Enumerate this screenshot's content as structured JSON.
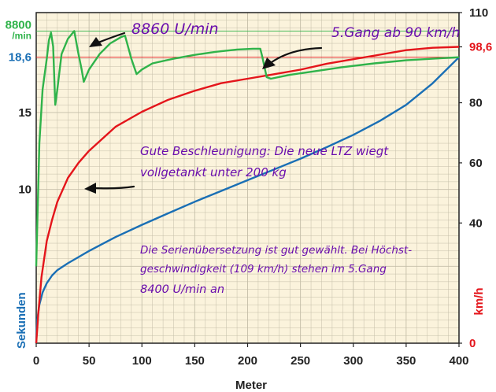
{
  "chart_data": {
    "type": "line",
    "xlabel": "Meter",
    "ylabel_left": "Sekunden",
    "ylabel_right": "km/h",
    "xlim": [
      0,
      400
    ],
    "ylim_left_seconds": [
      0,
      21.5
    ],
    "ylim_right_kmh": [
      0,
      110
    ],
    "x_ticks": [
      "0",
      "50",
      "100",
      "150",
      "200",
      "250",
      "300",
      "350",
      "400"
    ],
    "left_ticks": [
      {
        "label": "10",
        "value": 10
      },
      {
        "label": "15",
        "value": 15
      },
      {
        "label": "18,6",
        "value": 18.6
      },
      {
        "label": "8800\n/min",
        "value": 20.3
      }
    ],
    "right_ticks": [
      {
        "label": "0",
        "value": 0
      },
      {
        "label": "40",
        "value": 40
      },
      {
        "label": "60",
        "value": 60
      },
      {
        "label": "80",
        "value": 80
      },
      {
        "label": "98,6",
        "value": 98.6
      },
      {
        "label": "110",
        "value": 110
      }
    ],
    "grid": true,
    "colors": {
      "plot_background": "#fbf3dc",
      "grid": "#c4bea8",
      "time": "#1a6fb5",
      "speed": "#e4151b",
      "rpm": "#2fb34a",
      "annotation": "#6a0dad"
    },
    "series": [
      {
        "key": "time",
        "axis": "left",
        "points": [
          [
            0,
            0
          ],
          [
            1,
            1.5
          ],
          [
            3,
            2.5
          ],
          [
            6,
            3.3
          ],
          [
            10,
            3.9
          ],
          [
            15,
            4.4
          ],
          [
            20,
            4.75
          ],
          [
            30,
            5.2
          ],
          [
            40,
            5.6
          ],
          [
            50,
            6.0
          ],
          [
            75,
            6.9
          ],
          [
            100,
            7.7
          ],
          [
            125,
            8.45
          ],
          [
            150,
            9.2
          ],
          [
            175,
            9.9
          ],
          [
            200,
            10.6
          ],
          [
            225,
            11.3
          ],
          [
            250,
            12.0
          ],
          [
            275,
            12.75
          ],
          [
            300,
            13.55
          ],
          [
            325,
            14.45
          ],
          [
            350,
            15.5
          ],
          [
            375,
            16.9
          ],
          [
            400,
            18.6
          ]
        ]
      },
      {
        "key": "speed",
        "axis": "right",
        "points": [
          [
            0,
            0
          ],
          [
            2,
            10
          ],
          [
            5,
            22
          ],
          [
            10,
            34
          ],
          [
            15,
            41
          ],
          [
            20,
            47
          ],
          [
            30,
            55
          ],
          [
            40,
            60
          ],
          [
            50,
            64
          ],
          [
            75,
            72
          ],
          [
            100,
            77
          ],
          [
            125,
            81
          ],
          [
            150,
            84
          ],
          [
            175,
            86.5
          ],
          [
            200,
            88
          ],
          [
            225,
            89.5
          ],
          [
            250,
            91
          ],
          [
            275,
            93
          ],
          [
            300,
            94.5
          ],
          [
            325,
            96
          ],
          [
            350,
            97.5
          ],
          [
            375,
            98.3
          ],
          [
            400,
            98.6
          ]
        ]
      },
      {
        "key": "rpm",
        "axis": "left",
        "points": [
          [
            0,
            5
          ],
          [
            3,
            13
          ],
          [
            6,
            16.5
          ],
          [
            10,
            18.5
          ],
          [
            12,
            19.7
          ],
          [
            14,
            20.2
          ],
          [
            16,
            19.3
          ],
          [
            18,
            15.5
          ],
          [
            20,
            16.5
          ],
          [
            24,
            18.8
          ],
          [
            30,
            19.8
          ],
          [
            36,
            20.3
          ],
          [
            40,
            18.8
          ],
          [
            43,
            17.8
          ],
          [
            45,
            17.0
          ],
          [
            50,
            17.8
          ],
          [
            60,
            18.8
          ],
          [
            70,
            19.5
          ],
          [
            80,
            19.9
          ],
          [
            84,
            20.0
          ],
          [
            86,
            19.5
          ],
          [
            90,
            18.5
          ],
          [
            95,
            17.5
          ],
          [
            100,
            17.8
          ],
          [
            110,
            18.2
          ],
          [
            130,
            18.5
          ],
          [
            150,
            18.75
          ],
          [
            170,
            18.95
          ],
          [
            190,
            19.1
          ],
          [
            205,
            19.15
          ],
          [
            212,
            19.15
          ],
          [
            214,
            18.6
          ],
          [
            218,
            17.3
          ],
          [
            222,
            17.2
          ],
          [
            240,
            17.45
          ],
          [
            260,
            17.65
          ],
          [
            290,
            17.95
          ],
          [
            320,
            18.2
          ],
          [
            350,
            18.4
          ],
          [
            375,
            18.5
          ],
          [
            400,
            18.6
          ]
        ]
      }
    ],
    "annotations": {
      "rpm_peak": "8860 U/min",
      "gear": "5.Gang ab 90 km/h",
      "accel_line1": "Gute Beschleunigung: Die neue LTZ wiegt",
      "accel_line2": "vollgetankt unter 200 kg",
      "ratio_line1": "Die Serienübersetzung ist gut gewählt. Bei Höchst-",
      "ratio_line2": "geschwindigkeit (109 km/h) stehen im 5.Gang",
      "ratio_line3": "8400 U/min an"
    }
  }
}
